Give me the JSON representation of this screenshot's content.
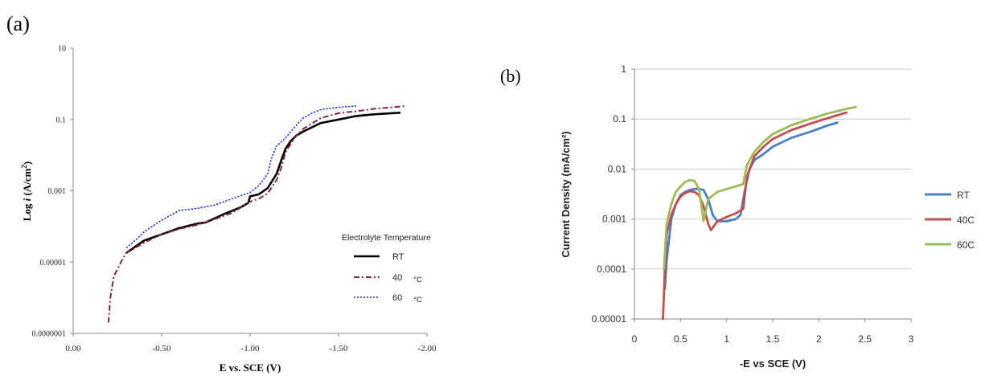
{
  "figure": {
    "panel_a_label": "(a)",
    "panel_b_label": "(b)"
  },
  "chart_data": [
    {
      "panel": "a",
      "type": "line",
      "xlabel": "E vs. SCE (V)",
      "ylabel": "Log i (A/cm²)",
      "ylabel_parts": {
        "prefix": "Log ",
        "italic": "i",
        "suffix": "  (A/cm",
        "sup": "2",
        "close": ")"
      },
      "x_axis": {
        "reversed": true,
        "range": [
          0,
          -2
        ],
        "ticks": [
          0,
          -0.5,
          -1,
          -1.5,
          -2
        ],
        "tick_labels": [
          "0.00",
          "-0.50",
          "-1.00",
          "-1.50",
          "-2.00"
        ]
      },
      "y_axis": {
        "scale": "log",
        "range": [
          1e-07,
          10
        ],
        "ticks": [
          1e-07,
          1e-05,
          0.001,
          0.1,
          10
        ],
        "tick_labels": [
          "0.0000001",
          "0.00001",
          "0.001",
          "0.1",
          "10"
        ]
      },
      "grid": false,
      "legend": {
        "title": "Electrolyte Temperature",
        "placement": "center-right"
      },
      "series": [
        {
          "name": "RT",
          "legend_main": "RT",
          "legend_unit": "",
          "color": "#000000",
          "style": "solid",
          "points": [
            [
              -0.3,
              1.8e-05
            ],
            [
              -0.4,
              4e-05
            ],
            [
              -0.5,
              6e-05
            ],
            [
              -0.6,
              9e-05
            ],
            [
              -0.7,
              0.00012
            ],
            [
              -0.75,
              0.00013
            ],
            [
              -0.85,
              0.00022
            ],
            [
              -0.95,
              0.00035
            ],
            [
              -0.99,
              0.00046
            ],
            [
              -1.0,
              0.0007
            ],
            [
              -1.05,
              0.0008
            ],
            [
              -1.1,
              0.0012
            ],
            [
              -1.15,
              0.003
            ],
            [
              -1.18,
              0.008
            ],
            [
              -1.2,
              0.015
            ],
            [
              -1.23,
              0.025
            ],
            [
              -1.26,
              0.035
            ],
            [
              -1.3,
              0.046
            ],
            [
              -1.4,
              0.08
            ],
            [
              -1.5,
              0.1
            ],
            [
              -1.6,
              0.125
            ],
            [
              -1.7,
              0.14
            ],
            [
              -1.8,
              0.15
            ],
            [
              -1.85,
              0.155
            ]
          ]
        },
        {
          "name": "40 °C",
          "legend_main": "40",
          "legend_unit": "°C",
          "color": "#7a2642",
          "style": "dashdot",
          "points": [
            [
              -0.2,
              2e-07
            ],
            [
              -0.21,
              1e-06
            ],
            [
              -0.23,
              4e-06
            ],
            [
              -0.27,
              1e-05
            ],
            [
              -0.3,
              1.8e-05
            ],
            [
              -0.4,
              3.5e-05
            ],
            [
              -0.5,
              6e-05
            ],
            [
              -0.6,
              8.5e-05
            ],
            [
              -0.7,
              0.00011
            ],
            [
              -0.8,
              0.00016
            ],
            [
              -0.9,
              0.00024
            ],
            [
              -1.0,
              0.0005
            ],
            [
              -1.05,
              0.0006
            ],
            [
              -1.1,
              0.00085
            ],
            [
              -1.15,
              0.002
            ],
            [
              -1.18,
              0.005
            ],
            [
              -1.2,
              0.012
            ],
            [
              -1.25,
              0.03
            ],
            [
              -1.3,
              0.055
            ],
            [
              -1.4,
              0.11
            ],
            [
              -1.5,
              0.15
            ],
            [
              -1.6,
              0.17
            ],
            [
              -1.7,
              0.2
            ],
            [
              -1.8,
              0.22
            ],
            [
              -1.88,
              0.24
            ]
          ]
        },
        {
          "name": "60 °C",
          "legend_main": "60",
          "legend_unit": "°C",
          "color": "#1f2fd9",
          "style": "dotted",
          "points": [
            [
              -0.3,
              2.5e-05
            ],
            [
              -0.35,
              4e-05
            ],
            [
              -0.4,
              7e-05
            ],
            [
              -0.5,
              0.00015
            ],
            [
              -0.6,
              0.00028
            ],
            [
              -0.7,
              0.00032
            ],
            [
              -0.8,
              0.0004
            ],
            [
              -0.9,
              0.0006
            ],
            [
              -1.0,
              0.0009
            ],
            [
              -1.05,
              0.0014
            ],
            [
              -1.1,
              0.003
            ],
            [
              -1.12,
              0.008
            ],
            [
              -1.15,
              0.018
            ],
            [
              -1.2,
              0.03
            ],
            [
              -1.25,
              0.06
            ],
            [
              -1.3,
              0.11
            ],
            [
              -1.35,
              0.15
            ],
            [
              -1.4,
              0.19
            ],
            [
              -1.5,
              0.22
            ],
            [
              -1.6,
              0.24
            ]
          ]
        }
      ]
    },
    {
      "panel": "b",
      "type": "line",
      "xlabel": "-E vs SCE (V)",
      "ylabel": "Current Density (mA/cm²)",
      "x_axis": {
        "range": [
          0,
          3
        ],
        "ticks": [
          0,
          0.5,
          1,
          1.5,
          2,
          2.5,
          3
        ],
        "tick_labels": [
          "0",
          "0.5",
          "1",
          "1.5",
          "2",
          "2.5",
          "3"
        ]
      },
      "y_axis": {
        "scale": "log",
        "range": [
          1e-05,
          1
        ],
        "ticks": [
          1e-05,
          0.0001,
          0.001,
          0.01,
          0.1,
          1
        ],
        "tick_labels": [
          "0.00001",
          "0.0001",
          "0.001",
          "0.01",
          "0.1",
          "1"
        ]
      },
      "grid": true,
      "legend": {
        "placement": "right"
      },
      "series": [
        {
          "name": "RT",
          "color": "#4a7fc1",
          "points": [
            [
              0.33,
              4e-05
            ],
            [
              0.35,
              0.00015
            ],
            [
              0.4,
              0.001
            ],
            [
              0.45,
              0.002
            ],
            [
              0.5,
              0.003
            ],
            [
              0.55,
              0.0035
            ],
            [
              0.6,
              0.0038
            ],
            [
              0.65,
              0.004
            ],
            [
              0.7,
              0.004
            ],
            [
              0.75,
              0.0038
            ],
            [
              0.8,
              0.0025
            ],
            [
              0.85,
              0.0012
            ],
            [
              0.9,
              0.0009
            ],
            [
              1.0,
              0.0009
            ],
            [
              1.1,
              0.001
            ],
            [
              1.15,
              0.0012
            ],
            [
              1.2,
              0.004
            ],
            [
              1.25,
              0.01
            ],
            [
              1.3,
              0.015
            ],
            [
              1.4,
              0.02
            ],
            [
              1.5,
              0.028
            ],
            [
              1.7,
              0.042
            ],
            [
              1.9,
              0.055
            ],
            [
              2.1,
              0.075
            ],
            [
              2.2,
              0.085
            ]
          ]
        },
        {
          "name": "40C",
          "color": "#c0504d",
          "points": [
            [
              0.31,
              1e-05
            ],
            [
              0.33,
              0.0001
            ],
            [
              0.35,
              0.0005
            ],
            [
              0.4,
              0.0012
            ],
            [
              0.45,
              0.002
            ],
            [
              0.5,
              0.0028
            ],
            [
              0.55,
              0.0033
            ],
            [
              0.6,
              0.0036
            ],
            [
              0.65,
              0.0035
            ],
            [
              0.7,
              0.003
            ],
            [
              0.75,
              0.0018
            ],
            [
              0.8,
              0.0008
            ],
            [
              0.83,
              0.0006
            ],
            [
              0.9,
              0.0009
            ],
            [
              1.0,
              0.0011
            ],
            [
              1.1,
              0.0013
            ],
            [
              1.18,
              0.0016
            ],
            [
              1.22,
              0.007
            ],
            [
              1.3,
              0.018
            ],
            [
              1.4,
              0.028
            ],
            [
              1.5,
              0.04
            ],
            [
              1.7,
              0.06
            ],
            [
              1.9,
              0.08
            ],
            [
              2.1,
              0.105
            ],
            [
              2.3,
              0.135
            ]
          ]
        },
        {
          "name": "60C",
          "color": "#9bbb59",
          "points": [
            [
              0.32,
              0.0001
            ],
            [
              0.35,
              0.0008
            ],
            [
              0.4,
              0.002
            ],
            [
              0.45,
              0.0035
            ],
            [
              0.5,
              0.0045
            ],
            [
              0.55,
              0.0055
            ],
            [
              0.6,
              0.006
            ],
            [
              0.65,
              0.0058
            ],
            [
              0.7,
              0.004
            ],
            [
              0.75,
              0.0009
            ],
            [
              0.8,
              0.0025
            ],
            [
              0.9,
              0.0035
            ],
            [
              1.0,
              0.004
            ],
            [
              1.1,
              0.0045
            ],
            [
              1.18,
              0.005
            ],
            [
              1.22,
              0.012
            ],
            [
              1.3,
              0.022
            ],
            [
              1.4,
              0.035
            ],
            [
              1.5,
              0.05
            ],
            [
              1.7,
              0.075
            ],
            [
              1.9,
              0.1
            ],
            [
              2.1,
              0.13
            ],
            [
              2.3,
              0.16
            ],
            [
              2.4,
              0.175
            ]
          ]
        }
      ]
    }
  ]
}
